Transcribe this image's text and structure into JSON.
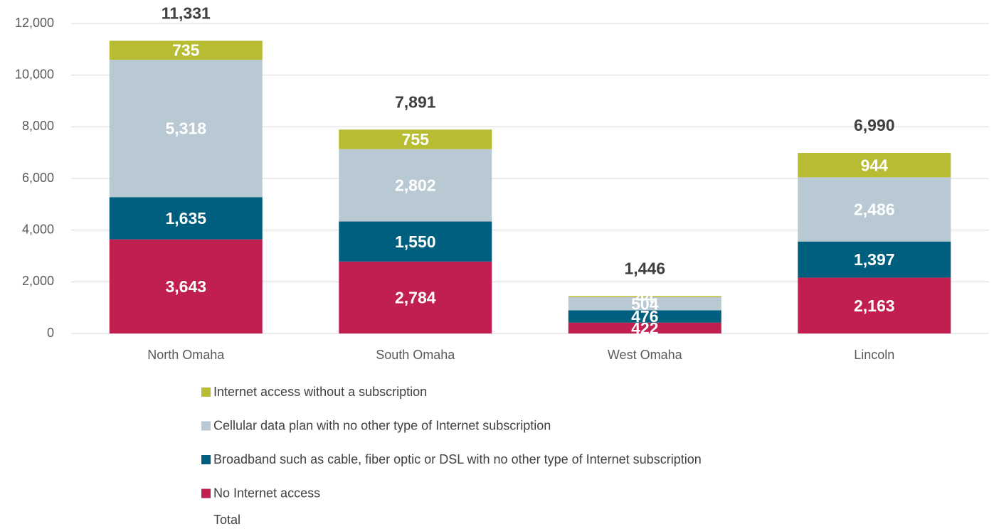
{
  "chart_data": {
    "type": "stacked_bar",
    "categories": [
      "North Omaha",
      "South Omaha",
      "West Omaha",
      "Lincoln"
    ],
    "series": [
      {
        "name": "No Internet access",
        "color": "#c01f50",
        "values": [
          3643,
          2784,
          422,
          2163
        ],
        "value_labels": [
          "3,643",
          "2,784",
          "422",
          "2,163"
        ]
      },
      {
        "name": "Broadband such as cable, fiber optic or DSL with no other type of Internet subscription",
        "color": "#005f7f",
        "values": [
          1635,
          1550,
          476,
          1397
        ],
        "value_labels": [
          "1,635",
          "1,550",
          "476",
          "1,397"
        ]
      },
      {
        "name": "Cellular data plan with no other type of Internet subscription",
        "color": "#b9c9d3",
        "values": [
          5318,
          2802,
          504,
          2486
        ],
        "value_labels": [
          "5,318",
          "2,802",
          "504",
          "2,486"
        ]
      },
      {
        "name": "Internet access without a subscription",
        "color": "#b8bc32",
        "values": [
          735,
          755,
          44,
          944
        ],
        "value_labels": [
          "735",
          "755",
          "44",
          "944"
        ]
      }
    ],
    "totals": {
      "name": "Total",
      "values": [
        11331,
        7891,
        1446,
        6990
      ],
      "value_labels": [
        "11,331",
        "7,891",
        "1,446",
        "6,990"
      ]
    },
    "ylim": [
      0,
      12000
    ],
    "yticks": [
      0,
      {
        "value": 2000,
        "label": "2,000"
      },
      {
        "value": 4000,
        "label": "4,000"
      },
      {
        "value": 6000,
        "label": "6,000"
      },
      {
        "value": 8000,
        "label": "8,000"
      },
      {
        "value": 10000,
        "label": "10,000"
      },
      {
        "value": 12000,
        "label": "12,000"
      }
    ],
    "grid": true
  }
}
